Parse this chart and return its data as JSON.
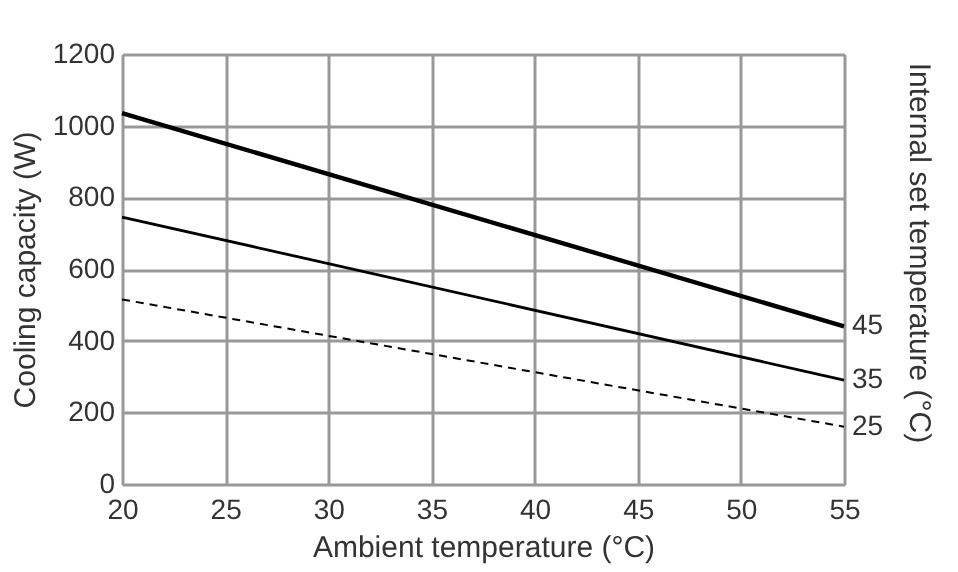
{
  "chart_data": {
    "type": "line",
    "xlabel": "Ambient temperature (°C)",
    "ylabel": "Cooling capacity (W)",
    "y2label": "Internal set temperature (°C)",
    "x": [
      20,
      55
    ],
    "series": [
      {
        "name": "45",
        "color": "#000000",
        "line_style": "solid",
        "values": [
          1035,
          440
        ]
      },
      {
        "name": "35",
        "color": "#000000",
        "line_style": "solid",
        "values": [
          745,
          290
        ]
      },
      {
        "name": "25",
        "color": "#000000",
        "line_style": "dashed",
        "values": [
          515,
          160
        ]
      }
    ],
    "xlim": [
      20,
      55
    ],
    "xticks": [
      20,
      25,
      30,
      35,
      40,
      45,
      50,
      55
    ],
    "ylim": [
      0,
      1200
    ],
    "yticks": [
      0,
      200,
      400,
      600,
      800,
      1000,
      1200
    ],
    "grid": true,
    "legend": false,
    "marker": "none"
  }
}
